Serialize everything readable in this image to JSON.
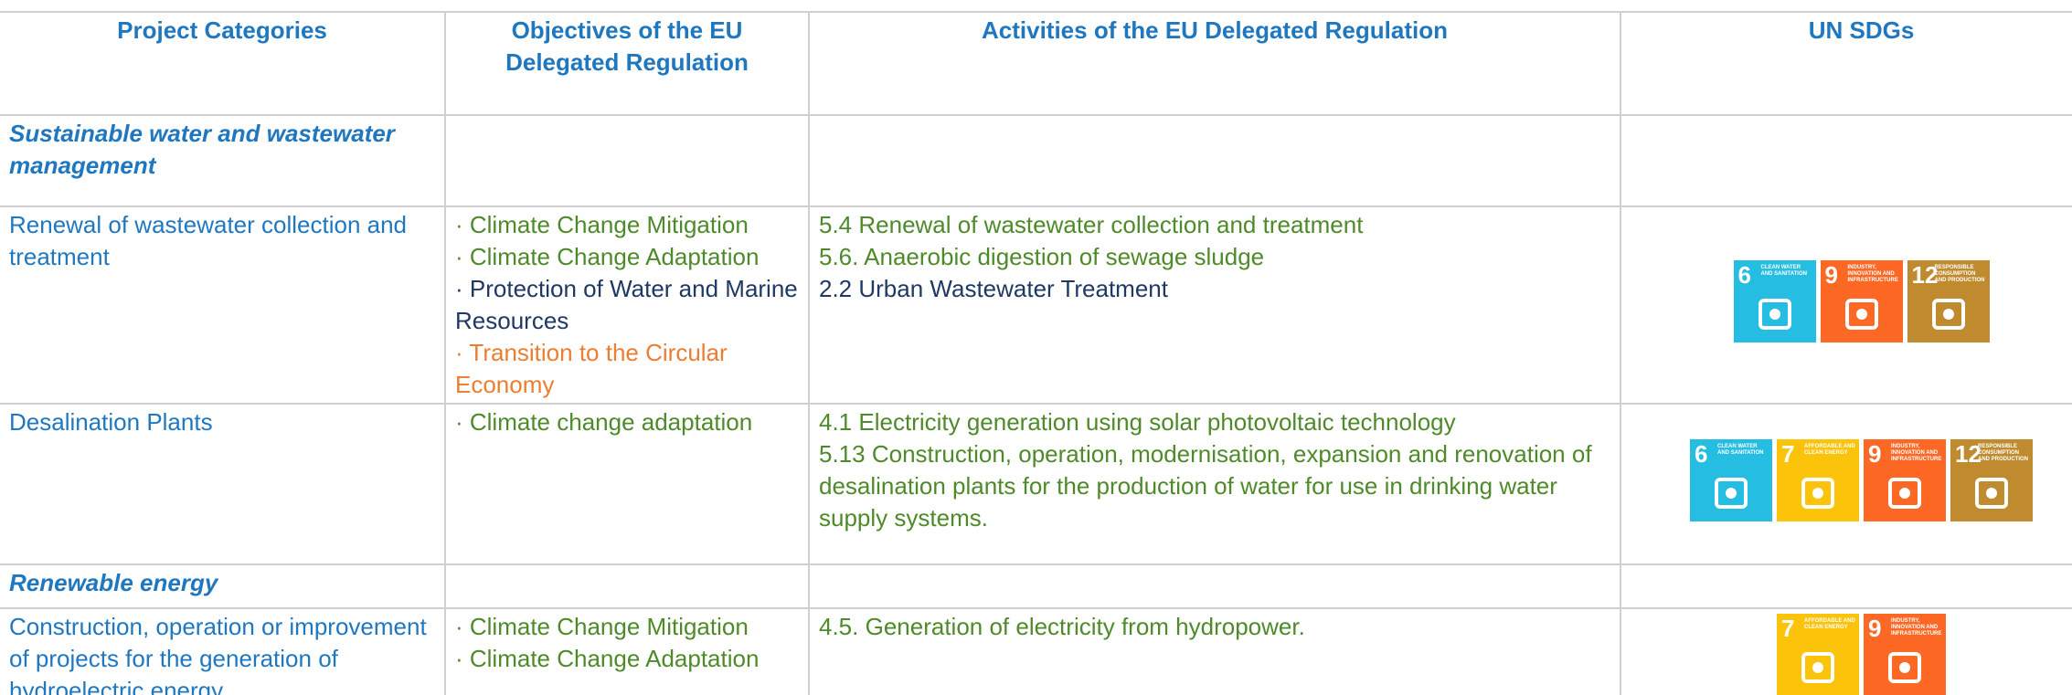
{
  "table": {
    "header": [
      "Project Categories",
      "Objectives of the EU Delegated Regulation",
      "Activities of the EU Delegated Regulation",
      "UN SDGs"
    ],
    "rows": [
      {
        "section": "Sustainable water and wastewater management"
      },
      {
        "category": "Renewal of wastewater collection and treatment",
        "objectives": [
          {
            "text": "· Climate Change Mitigation",
            "color": "#4e8a2a"
          },
          {
            "text": "· Climate Change Adaptation",
            "color": "#4e8a2a"
          },
          {
            "text": "· Protection of Water and Marine Resources",
            "color": "#1f3864"
          },
          {
            "text": "· Transition to the Circular Economy",
            "color": "#ed7d31"
          }
        ],
        "activities": [
          {
            "text": "5.4 Renewal of wastewater collection and treatment",
            "color": "#4e8a2a"
          },
          {
            "text": "5.6. Anaerobic digestion of sewage sludge",
            "color": "#4e8a2a"
          },
          {
            "text": "2.2 Urban Wastewater Treatment",
            "color": "#1f3864"
          }
        ],
        "sdgs": [
          {
            "number": 6,
            "label": "CLEAN WATER AND SANITATION",
            "color": "#26bde2"
          },
          {
            "number": 9,
            "label": "INDUSTRY, INNOVATION AND INFRASTRUCTURE",
            "color": "#fd6925"
          },
          {
            "number": 12,
            "label": "RESPONSIBLE CONSUMPTION AND PRODUCTION",
            "color": "#bf8b2e"
          }
        ]
      },
      {
        "category": "Desalination Plants",
        "objectives": [
          {
            "text": "·   Climate change adaptation",
            "color": "#4e8a2a"
          }
        ],
        "activities": [
          {
            "text": "4.1 Electricity generation using solar photovoltaic technology",
            "color": "#4e8a2a"
          },
          {
            "text": "5.13 Construction, operation, modernisation, expansion and renovation of desalination plants for the production of water for use in drinking water supply systems.",
            "color": "#4e8a2a"
          }
        ],
        "sdgs": [
          {
            "number": 6,
            "label": "CLEAN WATER AND SANITATION",
            "color": "#26bde2"
          },
          {
            "number": 7,
            "label": "AFFORDABLE AND CLEAN ENERGY",
            "color": "#fcc30b"
          },
          {
            "number": 9,
            "label": "INDUSTRY, INNOVATION AND INFRASTRUCTURE",
            "color": "#fd6925"
          },
          {
            "number": 12,
            "label": "RESPONSIBLE CONSUMPTION AND PRODUCTION",
            "color": "#bf8b2e"
          }
        ]
      },
      {
        "section": "Renewable energy"
      },
      {
        "category": "Construction, operation or improvement of projects for the generation of hydroelectric energy",
        "objectives": [
          {
            "text": "· Climate Change Mitigation",
            "color": "#4e8a2a"
          },
          {
            "text": "· Climate Change Adaptation",
            "color": "#4e8a2a"
          }
        ],
        "activities": [
          {
            "text": "4.5. Generation of electricity from hydropower.",
            "color": "#4e8a2a"
          }
        ],
        "sdgs": [
          {
            "number": 7,
            "label": "AFFORDABLE AND CLEAN ENERGY",
            "color": "#fcc30b"
          },
          {
            "number": 9,
            "label": "INDUSTRY, INNOVATION AND INFRASTRUCTURE",
            "color": "#fd6925"
          }
        ]
      }
    ]
  }
}
